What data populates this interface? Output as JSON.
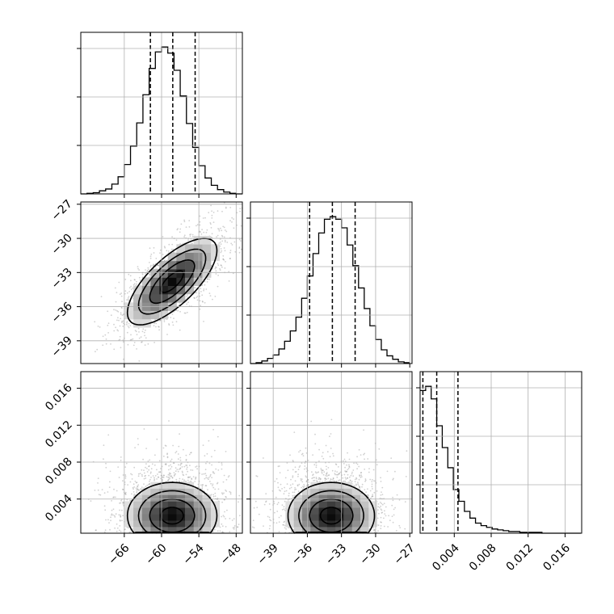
{
  "chart_data": {
    "type": "corner-plot",
    "grid": true,
    "parameters": [
      {
        "key": "p0",
        "range": [
          -73,
          -47
        ],
        "ticks": [
          -66,
          -60,
          -54,
          -48
        ],
        "tick_labels": [
          "−66",
          "−60",
          "−54",
          "−48"
        ]
      },
      {
        "key": "p1",
        "range": [
          -41,
          -26.8
        ],
        "ticks": [
          -39,
          -36,
          -33,
          -30,
          -27
        ],
        "tick_labels": [
          "−39",
          "−36",
          "−33",
          "−30",
          "−27"
        ]
      },
      {
        "key": "p2",
        "range": [
          0.0003,
          0.0178
        ],
        "ticks": [
          0.004,
          0.008,
          0.012,
          0.016
        ],
        "tick_labels": [
          "0.004",
          "0.008",
          "0.012",
          "0.016"
        ]
      }
    ],
    "histograms": [
      {
        "parameter": 0,
        "quantiles": [
          -61.8,
          -58.2,
          -54.6
        ],
        "bin_edges": [
          -73,
          -72,
          -71,
          -70,
          -69,
          -68,
          -67,
          -66,
          -65,
          -64,
          -63,
          -62,
          -61,
          -60,
          -59,
          -58,
          -57,
          -56,
          -55,
          -54,
          -53,
          -52,
          -51,
          -50,
          -49,
          -48,
          -47
        ],
        "counts": [
          0,
          1,
          2,
          5,
          8,
          16,
          28,
          48,
          78,
          116,
          162,
          205,
          232,
          240,
          230,
          202,
          160,
          115,
          76,
          46,
          26,
          14,
          7,
          3,
          1,
          0
        ]
      },
      {
        "parameter": 1,
        "quantiles": [
          -35.8,
          -33.8,
          -31.8
        ],
        "bin_edges": [
          -41,
          -40.5,
          -40,
          -39.5,
          -39,
          -38.5,
          -38,
          -37.5,
          -37,
          -36.5,
          -36,
          -35.5,
          -35,
          -34.5,
          -34,
          -33.5,
          -33,
          -32.5,
          -32,
          -31.5,
          -31,
          -30.5,
          -30,
          -29.5,
          -29,
          -28.5,
          -28,
          -27.5,
          -27
        ],
        "counts": [
          0,
          1,
          3,
          6,
          10,
          17,
          26,
          38,
          54,
          76,
          102,
          128,
          152,
          168,
          171,
          168,
          158,
          138,
          114,
          88,
          64,
          44,
          28,
          16,
          9,
          5,
          2,
          1
        ]
      },
      {
        "parameter": 2,
        "quantiles": [
          0.0006,
          0.0021,
          0.0044
        ],
        "bin_edges": [
          0.0003,
          0.0009,
          0.0015,
          0.0021,
          0.0027,
          0.0033,
          0.0039,
          0.0045,
          0.0051,
          0.0057,
          0.0063,
          0.0069,
          0.0075,
          0.0081,
          0.0087,
          0.0093,
          0.0099,
          0.0105,
          0.0111,
          0.0117,
          0.0123,
          0.0129,
          0.0135,
          0.0141,
          0.0147,
          0.0153,
          0.0159,
          0.0165,
          0.0171,
          0.0177
        ],
        "counts": [
          170,
          175,
          160,
          128,
          102,
          78,
          52,
          38,
          26,
          18,
          12,
          9,
          7,
          5,
          4,
          3,
          2,
          2,
          1,
          1,
          1,
          1,
          0,
          0,
          0,
          0,
          0,
          0,
          0
        ]
      }
    ],
    "pairs": [
      {
        "x": 0,
        "y": 1,
        "center": [
          -58.3,
          -33.8
        ],
        "sigma": [
          3.6,
          1.9
        ],
        "correlation": 0.72
      },
      {
        "x": 0,
        "y": 2,
        "center": [
          -58.3,
          0.0022
        ],
        "sigma": [
          3.6,
          0.0018
        ],
        "correlation": 0.0
      },
      {
        "x": 1,
        "y": 2,
        "center": [
          -33.9,
          0.0022
        ],
        "sigma": [
          1.9,
          0.0018
        ],
        "correlation": 0.0
      }
    ],
    "contour_levels": [
      0.5,
      1.0,
      1.5,
      2.0
    ]
  }
}
